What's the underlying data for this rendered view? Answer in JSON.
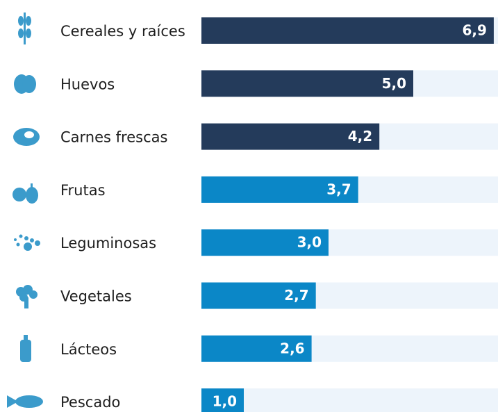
{
  "chart_data": {
    "type": "bar",
    "orientation": "horizontal",
    "categories": [
      "Cereales y raíces",
      "Huevos",
      "Carnes frescas",
      "Frutas",
      "Leguminosas",
      "Vegetales",
      "Lácteos",
      "Pescado"
    ],
    "values": [
      6.9,
      5.0,
      4.2,
      3.7,
      3.0,
      2.7,
      2.6,
      1.0
    ],
    "value_labels": [
      "6,9",
      "5,0",
      "4,2",
      "3,7",
      "3,0",
      "2,7",
      "2,6",
      "1,0"
    ],
    "colors": [
      "#243b5b",
      "#243b5b",
      "#243b5b",
      "#0b87c7",
      "#0b87c7",
      "#0b87c7",
      "#0b87c7",
      "#0b87c7"
    ],
    "xlim": [
      0,
      7
    ]
  }
}
